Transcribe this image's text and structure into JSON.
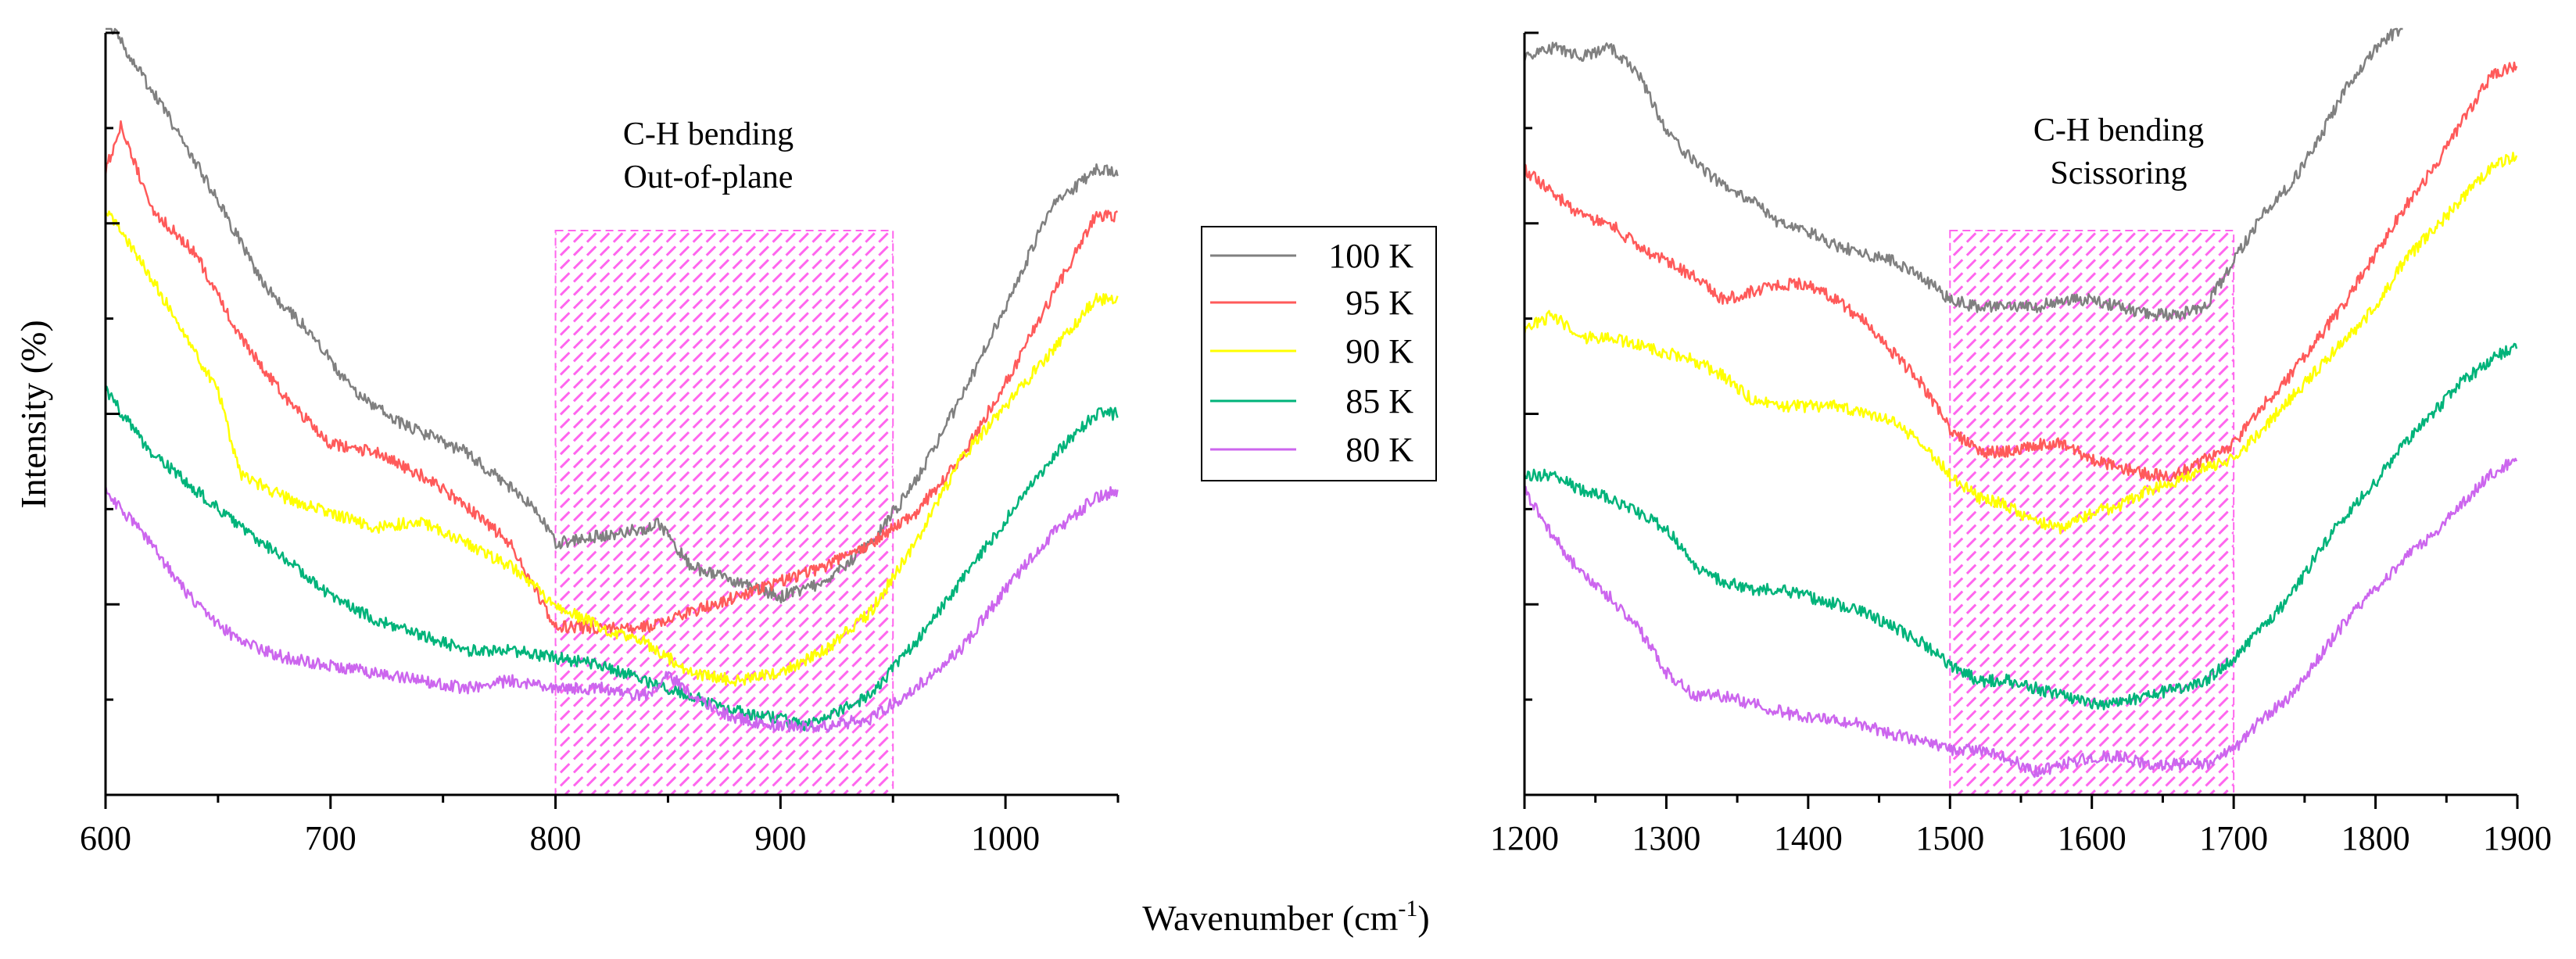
{
  "chart_data": {
    "type": "line",
    "ylabel": "Intensity (%)",
    "xlabel": "Wavenumber (cm",
    "xlabel_superscript": "-1",
    "xlabel_suffix": ")",
    "legend": {
      "placement": "center, between panels",
      "entries": [
        {
          "label": "100 K",
          "color": "#808080"
        },
        {
          "label": "95 K",
          "color": "#ff5a5a"
        },
        {
          "label": "90 K",
          "color": "#ffff00"
        },
        {
          "label": "85 K",
          "color": "#00b37a"
        },
        {
          "label": "80 K",
          "color": "#cc66ee"
        }
      ]
    },
    "panels": [
      {
        "xlim": [
          600,
          1050
        ],
        "ylim": [
          0,
          100
        ],
        "xticks": [
          600,
          700,
          800,
          900,
          1000
        ],
        "highlight": {
          "x0": 800,
          "x1": 950,
          "color": "#ff66ee",
          "pattern": "diagonal hatch"
        },
        "annotation": [
          "C-H bending",
          "Out-of-plane"
        ],
        "series": [
          {
            "name": "100 K",
            "color": "#808080",
            "x": [
              600,
              615,
              630,
              650,
              670,
              690,
              710,
              730,
              760,
              790,
              800,
              820,
              840,
              845,
              860,
              880,
              900,
              920,
              940,
              960,
              980,
              1000,
              1020,
              1040,
              1050
            ],
            "y": [
              102,
              95,
              88,
              78,
              67,
              61,
              53,
              49,
              45,
              38,
              33,
              34,
              35,
              36,
              30,
              28,
              26,
              28,
              33,
              41,
              52,
              64,
              77,
              82,
              82
            ]
          },
          {
            "name": "95 K",
            "color": "#ff5a5a",
            "x": [
              600,
              607,
              620,
              640,
              660,
              680,
              700,
              720,
              740,
              760,
              780,
              800,
              820,
              840,
              860,
              880,
              900,
              920,
              940,
              960,
              980,
              1000,
              1020,
              1040,
              1050
            ],
            "y": [
              82,
              88,
              77,
              71,
              60,
              52,
              46,
              45,
              42,
              38,
              33,
              22,
              22,
              22,
              24,
              26,
              28,
              30,
              33,
              37,
              44,
              54,
              65,
              76,
              76
            ]
          },
          {
            "name": "90 K",
            "color": "#ffff00",
            "x": [
              600,
              620,
              640,
              650,
              660,
              680,
              700,
              720,
              740,
              760,
              780,
              800,
              820,
              840,
              860,
              880,
              900,
              920,
              940,
              960,
              980,
              1000,
              1020,
              1040,
              1050
            ],
            "y": [
              77,
              68,
              58,
              53,
              42,
              39,
              37,
              35,
              36,
              33,
              30,
              25,
              22,
              20,
              16,
              15,
              16,
              19,
              24,
              33,
              44,
              51,
              58,
              65,
              65
            ]
          },
          {
            "name": "85 K",
            "color": "#00b37a",
            "x": [
              600,
              620,
              640,
              660,
              680,
              700,
              720,
              740,
              760,
              780,
              800,
              820,
              840,
              860,
              880,
              900,
              910,
              920,
              940,
              960,
              980,
              1000,
              1020,
              1040,
              1050
            ],
            "y": [
              53,
              45,
              40,
              35,
              31,
              26,
              23,
              21,
              19,
              19,
              18,
              17,
              15,
              13,
              11,
              10,
              9,
              10,
              13,
              20,
              28,
              36,
              44,
              50,
              50
            ]
          },
          {
            "name": "80 K",
            "color": "#cc66ee",
            "x": [
              600,
              620,
              640,
              660,
              680,
              700,
              720,
              740,
              760,
              780,
              800,
              820,
              840,
              845,
              850,
              860,
              880,
              900,
              920,
              940,
              960,
              980,
              1000,
              1020,
              1040,
              1050
            ],
            "y": [
              40,
              33,
              25,
              20,
              18,
              17,
              16,
              15,
              14,
              15,
              14,
              14,
              13,
              14,
              16,
              13,
              10,
              9,
              9,
              10,
              14,
              19,
              27,
              34,
              39,
              40
            ]
          }
        ]
      },
      {
        "xlim": [
          1200,
          1900
        ],
        "ylim": [
          0,
          100
        ],
        "xticks": [
          1200,
          1300,
          1400,
          1500,
          1600,
          1700,
          1800,
          1900
        ],
        "highlight": {
          "x0": 1500,
          "x1": 1700,
          "color": "#ff66ee",
          "pattern": "diagonal hatch"
        },
        "annotation": [
          "C-H bending",
          "Scissoring"
        ],
        "series": [
          {
            "name": "100 K",
            "color": "#808080",
            "x": [
              1200,
              1220,
              1240,
              1260,
              1280,
              1300,
              1320,
              1340,
              1360,
              1380,
              1400,
              1420,
              1440,
              1460,
              1480,
              1500,
              1520,
              1540,
              1560,
              1580,
              1600,
              1620,
              1640,
              1660,
              1680,
              1700,
              1720,
              1740,
              1760,
              1780,
              1800,
              1820
            ],
            "y": [
              97,
              98,
              97,
              98,
              95,
              87,
              83,
              80,
              78,
              75,
              74,
              72,
              71,
              70,
              68,
              65,
              64,
              64,
              64,
              65,
              65,
              64,
              63,
              63,
              64,
              70,
              76,
              80,
              86,
              93,
              98,
              101
            ]
          },
          {
            "name": "95 K",
            "color": "#ff5a5a",
            "x": [
              1200,
              1220,
              1240,
              1260,
              1280,
              1300,
              1320,
              1340,
              1360,
              1380,
              1400,
              1420,
              1440,
              1460,
              1480,
              1500,
              1520,
              1540,
              1560,
              1580,
              1600,
              1620,
              1640,
              1660,
              1680,
              1700,
              1720,
              1740,
              1760,
              1780,
              1800,
              1820,
              1840,
              1860,
              1880,
              1900
            ],
            "y": [
              82,
              79,
              76,
              75,
              72,
              70,
              68,
              65,
              66,
              67,
              67,
              65,
              62,
              58,
              54,
              48,
              45,
              45,
              46,
              46,
              44,
              43,
              42,
              42,
              44,
              46,
              51,
              55,
              60,
              65,
              71,
              77,
              82,
              88,
              94,
              96
            ]
          },
          {
            "name": "90 K",
            "color": "#ffff00",
            "x": [
              1200,
              1220,
              1240,
              1260,
              1280,
              1300,
              1320,
              1340,
              1360,
              1380,
              1400,
              1420,
              1440,
              1460,
              1480,
              1500,
              1520,
              1540,
              1560,
              1580,
              1600,
              1620,
              1640,
              1660,
              1680,
              1700,
              1720,
              1740,
              1760,
              1780,
              1800,
              1820,
              1840,
              1860,
              1880,
              1900
            ],
            "y": [
              61,
              63,
              60,
              60,
              59,
              58,
              57,
              55,
              52,
              51,
              51,
              51,
              50,
              49,
              46,
              42,
              39,
              38,
              36,
              35,
              37,
              38,
              40,
              41,
              43,
              44,
              48,
              52,
              56,
              60,
              64,
              70,
              74,
              78,
              82,
              84
            ]
          },
          {
            "name": "85 K",
            "color": "#00b37a",
            "x": [
              1200,
              1220,
              1240,
              1260,
              1280,
              1300,
              1320,
              1340,
              1360,
              1380,
              1400,
              1420,
              1440,
              1460,
              1480,
              1500,
              1520,
              1540,
              1560,
              1580,
              1600,
              1620,
              1640,
              1660,
              1680,
              1700,
              1720,
              1740,
              1760,
              1780,
              1800,
              1820,
              1840,
              1860,
              1880,
              1900
            ],
            "y": [
              42,
              42,
              40,
              39,
              37,
              35,
              30,
              28,
              27,
              27,
              26,
              25,
              24,
              22,
              20,
              17,
              15,
              15,
              14,
              13,
              12,
              12,
              13,
              14,
              15,
              18,
              22,
              26,
              32,
              37,
              41,
              46,
              50,
              54,
              57,
              59
            ]
          },
          {
            "name": "80 K",
            "color": "#cc66ee",
            "x": [
              1200,
              1220,
              1240,
              1260,
              1280,
              1300,
              1320,
              1340,
              1360,
              1380,
              1400,
              1420,
              1440,
              1460,
              1480,
              1500,
              1520,
              1540,
              1560,
              1580,
              1600,
              1620,
              1640,
              1660,
              1680,
              1700,
              1720,
              1740,
              1760,
              1780,
              1800,
              1820,
              1840,
              1860,
              1880,
              1900
            ],
            "y": [
              40,
              34,
              29,
              26,
              22,
              16,
              13,
              13,
              12,
              11,
              10,
              10,
              9,
              8,
              7,
              6,
              6,
              5,
              3,
              4,
              5,
              5,
              4,
              4,
              4,
              6,
              10,
              13,
              18,
              23,
              27,
              31,
              34,
              38,
              42,
              44
            ]
          }
        ]
      }
    ]
  }
}
